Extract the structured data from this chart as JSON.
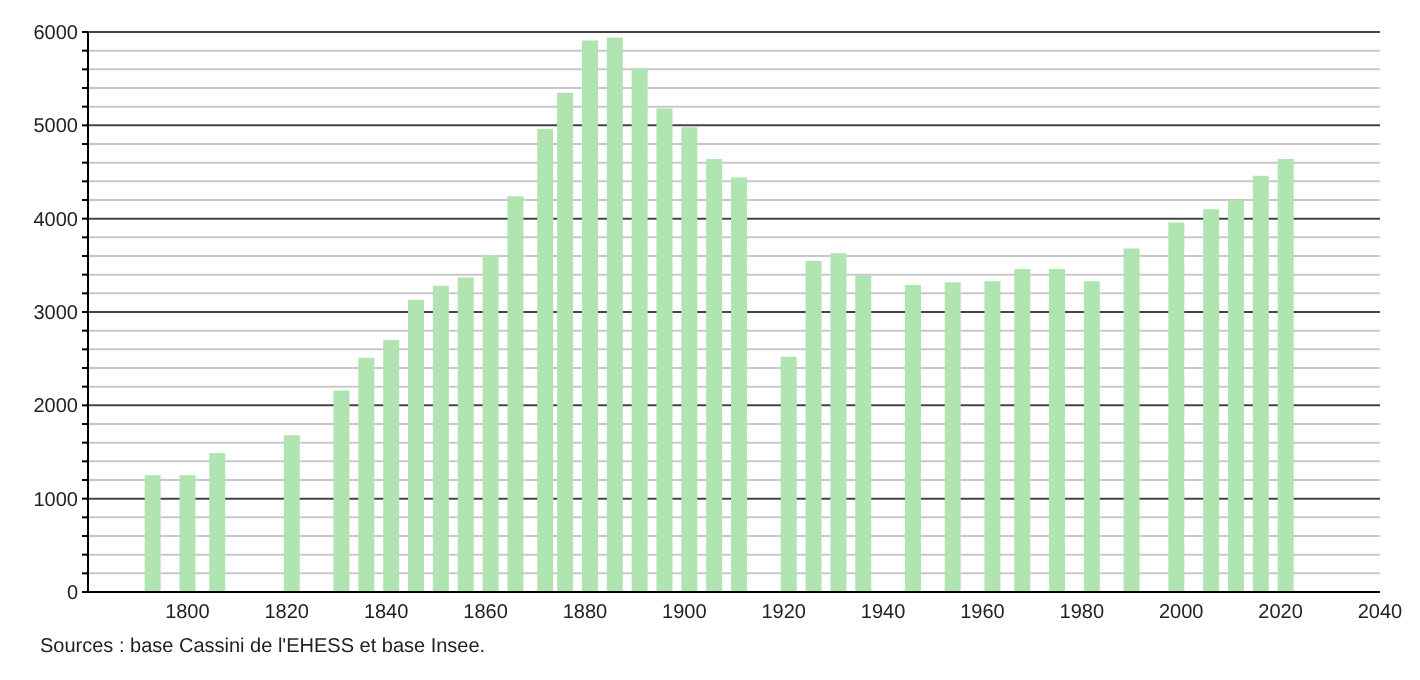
{
  "chart_data": {
    "type": "bar",
    "x": [
      1793,
      1800,
      1806,
      1821,
      1831,
      1836,
      1841,
      1846,
      1851,
      1856,
      1861,
      1866,
      1872,
      1876,
      1881,
      1886,
      1891,
      1896,
      1901,
      1906,
      1911,
      1921,
      1926,
      1931,
      1936,
      1946,
      1954,
      1962,
      1968,
      1975,
      1982,
      1990,
      1999,
      2006,
      2011,
      2016,
      2021
    ],
    "values": [
      1250,
      1250,
      1490,
      1680,
      2160,
      2510,
      2700,
      3130,
      3280,
      3370,
      3610,
      4240,
      4960,
      5350,
      5910,
      5940,
      5610,
      5180,
      4980,
      4640,
      4440,
      2520,
      3550,
      3630,
      3390,
      3290,
      3320,
      3330,
      3460,
      3460,
      3330,
      3680,
      3960,
      4100,
      4200,
      4460,
      4640
    ],
    "color": "#b0e4b0",
    "xlim": [
      1780,
      2040
    ],
    "xticks": [
      1800,
      1820,
      1840,
      1860,
      1880,
      1900,
      1920,
      1940,
      1960,
      1980,
      2000,
      2020,
      2040
    ],
    "ylim": [
      0,
      6000
    ],
    "yticks": [
      0,
      {
        "value": 200,
        "label": null
      },
      {
        "value": 400,
        "label": null
      },
      {
        "value": 600,
        "label": null
      },
      {
        "value": 800,
        "label": null
      },
      1000,
      {
        "value": 1200,
        "label": null
      },
      {
        "value": 1400,
        "label": null
      },
      {
        "value": 1600,
        "label": null
      },
      {
        "value": 1800,
        "label": null
      },
      2000,
      {
        "value": 2200,
        "label": null
      },
      {
        "value": 2400,
        "label": null
      },
      {
        "value": 2600,
        "label": null
      },
      {
        "value": 2800,
        "label": null
      },
      3000,
      {
        "value": 3200,
        "label": null
      },
      {
        "value": 3400,
        "label": null
      },
      {
        "value": 3600,
        "label": null
      },
      {
        "value": 3800,
        "label": null
      },
      4000,
      {
        "value": 4200,
        "label": null
      },
      {
        "value": 4400,
        "label": null
      },
      {
        "value": 4600,
        "label": null
      },
      {
        "value": 4800,
        "label": null
      },
      5000,
      {
        "value": 5200,
        "label": null
      },
      {
        "value": 5400,
        "label": null
      },
      {
        "value": 5600,
        "label": null
      },
      {
        "value": 5800,
        "label": null
      },
      6000
    ],
    "grid": "y",
    "legend": false,
    "annotations": [
      "Sources : base Cassini de l'EHESS et base Insee."
    ]
  }
}
